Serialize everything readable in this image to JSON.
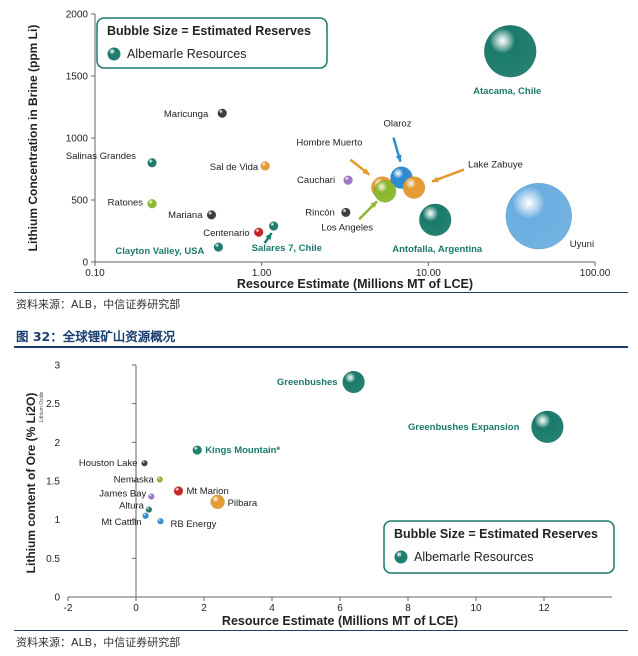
{
  "figure2_caption": "图 32：全球锂矿山资源概况",
  "sources": [
    "资料来源：ALB，中信证券研究部",
    "资料来源：ALB，中信证券研究部"
  ],
  "colors": {
    "teal": "#1a7a6b",
    "tealLabel": "#1a7a6b",
    "dark": "#3a3a3a",
    "orange": "#e59a2e",
    "blue": "#2a8ad0",
    "green": "#8ab830",
    "purple": "#9a76c8",
    "red": "#c62020",
    "lightblue": "#6aaee0",
    "rule": "#1a3f6f"
  },
  "chart_data": [
    {
      "type": "scatter",
      "xlabel": "Resource Estimate (Millions MT of LCE)",
      "ylabel": "Lithium Concentration in Brine (ppm Li)",
      "xscale": "log",
      "xlim": [
        0.1,
        100
      ],
      "ylim": [
        0,
        2000
      ],
      "xticks": [
        0.1,
        1,
        10,
        100
      ],
      "xtick_labels": [
        "0.10",
        "1.00",
        "10.00",
        "100.00"
      ],
      "yticks": [
        0,
        500,
        1000,
        1500,
        2000
      ],
      "ytick_labels": [
        "0",
        "500",
        "1000",
        "1500",
        "2000"
      ],
      "legend": {
        "title": "Bubble Size = Estimated Reserves",
        "item": "Albemarle Resources",
        "position": "top-left"
      },
      "points": [
        {
          "label": "Maricunga",
          "x": 0.58,
          "y": 1200,
          "color": "dark",
          "size": "small",
          "labelColor": "default"
        },
        {
          "label": "Salinas Grandes",
          "x": 0.22,
          "y": 800,
          "color": "teal",
          "size": "small",
          "labelColor": "default"
        },
        {
          "label": "Sal de Vida",
          "x": 1.05,
          "y": 775,
          "color": "orange",
          "size": "small",
          "labelColor": "default"
        },
        {
          "label": "Ratones",
          "x": 0.22,
          "y": 470,
          "color": "green",
          "size": "small",
          "labelColor": "default"
        },
        {
          "label": "Mariana",
          "x": 0.5,
          "y": 380,
          "color": "dark",
          "size": "small",
          "labelColor": "default"
        },
        {
          "label": "Centenario",
          "x": 0.96,
          "y": 240,
          "color": "red",
          "size": "small",
          "labelColor": "default"
        },
        {
          "label": "Clayton Valley, USA",
          "x": 0.55,
          "y": 120,
          "color": "teal",
          "size": "small",
          "labelColor": "teal"
        },
        {
          "label": "Salares 7, Chile",
          "x": 1.18,
          "y": 290,
          "color": "teal",
          "size": "small",
          "labelColor": "teal"
        },
        {
          "label": "Hombre Muerto",
          "x": 5.3,
          "y": 600,
          "color": "orange",
          "size": "medium",
          "labelColor": "default"
        },
        {
          "label": "Olaroz",
          "x": 6.9,
          "y": 680,
          "color": "blue",
          "size": "medium",
          "labelColor": "default"
        },
        {
          "label": "Cauchari",
          "x": 3.3,
          "y": 660,
          "color": "purple",
          "size": "small",
          "labelColor": "default"
        },
        {
          "label": "Lake Zabuye",
          "x": 8.2,
          "y": 600,
          "color": "orange",
          "size": "medium",
          "labelColor": "default"
        },
        {
          "label": "Rincón",
          "x": 3.2,
          "y": 400,
          "color": "dark",
          "size": "small",
          "labelColor": "default"
        },
        {
          "label": "Los Angeles",
          "x": 5.5,
          "y": 570,
          "color": "green",
          "size": "medium",
          "labelColor": "default"
        },
        {
          "label": "Antofalla, Argentina",
          "x": 11.0,
          "y": 340,
          "color": "teal",
          "size": "large",
          "labelColor": "teal"
        },
        {
          "label": "Atacama, Chile",
          "x": 31.0,
          "y": 1700,
          "color": "teal",
          "size": "xlarge",
          "labelColor": "teal"
        },
        {
          "label": "Uyuni",
          "x": 46.0,
          "y": 370,
          "color": "lightblue",
          "size": "xxlarge",
          "labelColor": "default"
        }
      ]
    },
    {
      "type": "scatter",
      "xlabel": "Resource Estimate (Millions MT of LCE)",
      "ylabel": "Lithium content of Ore (% Li2O)",
      "ylabel_small": "Lithium Oxide",
      "xlim": [
        -2,
        14
      ],
      "ylim": [
        0,
        3
      ],
      "xticks": [
        -2,
        0,
        2,
        4,
        6,
        8,
        10,
        12
      ],
      "xtick_labels": [
        "-2",
        "0",
        "2",
        "4",
        "6",
        "8",
        "10",
        "12"
      ],
      "yticks": [
        0,
        0.5,
        1,
        1.5,
        2,
        2.5,
        3
      ],
      "ytick_labels": [
        "0",
        "0.5",
        "1",
        "1.5",
        "2",
        "2.5",
        "3"
      ],
      "legend": {
        "title": "Bubble Size = Estimated Reserves",
        "item": "Albemarle Resources",
        "position": "bottom-right"
      },
      "points": [
        {
          "label": "Greenbushes",
          "x": 6.4,
          "y": 2.78,
          "color": "teal",
          "size": "medium",
          "labelColor": "teal"
        },
        {
          "label": "Greenbushes Expansion",
          "x": 12.1,
          "y": 2.2,
          "color": "teal",
          "size": "large",
          "labelColor": "teal"
        },
        {
          "label": "Kings Mountain*",
          "x": 1.8,
          "y": 1.9,
          "color": "teal",
          "size": "small",
          "labelColor": "teal"
        },
        {
          "label": "Houston Lake",
          "x": 0.25,
          "y": 1.73,
          "color": "dark",
          "size": "tiny",
          "labelColor": "default"
        },
        {
          "label": "Nemaska",
          "x": 0.7,
          "y": 1.52,
          "color": "green",
          "size": "tiny",
          "labelColor": "default"
        },
        {
          "label": "Mt Marion",
          "x": 1.25,
          "y": 1.37,
          "color": "red",
          "size": "small",
          "labelColor": "default"
        },
        {
          "label": "James Bay",
          "x": 0.45,
          "y": 1.3,
          "color": "purple",
          "size": "tiny",
          "labelColor": "default"
        },
        {
          "label": "Pilbara",
          "x": 2.4,
          "y": 1.23,
          "color": "orange",
          "size": "medium-small",
          "labelColor": "default"
        },
        {
          "label": "Altura",
          "x": 0.38,
          "y": 1.13,
          "color": "teal",
          "size": "tiny",
          "labelColor": "default"
        },
        {
          "label": "Mt Cattlin",
          "x": 0.28,
          "y": 1.05,
          "color": "blue",
          "size": "tiny",
          "labelColor": "default"
        },
        {
          "label": "RB Energy",
          "x": 0.72,
          "y": 0.98,
          "color": "blue",
          "size": "tiny",
          "labelColor": "default"
        }
      ]
    }
  ]
}
